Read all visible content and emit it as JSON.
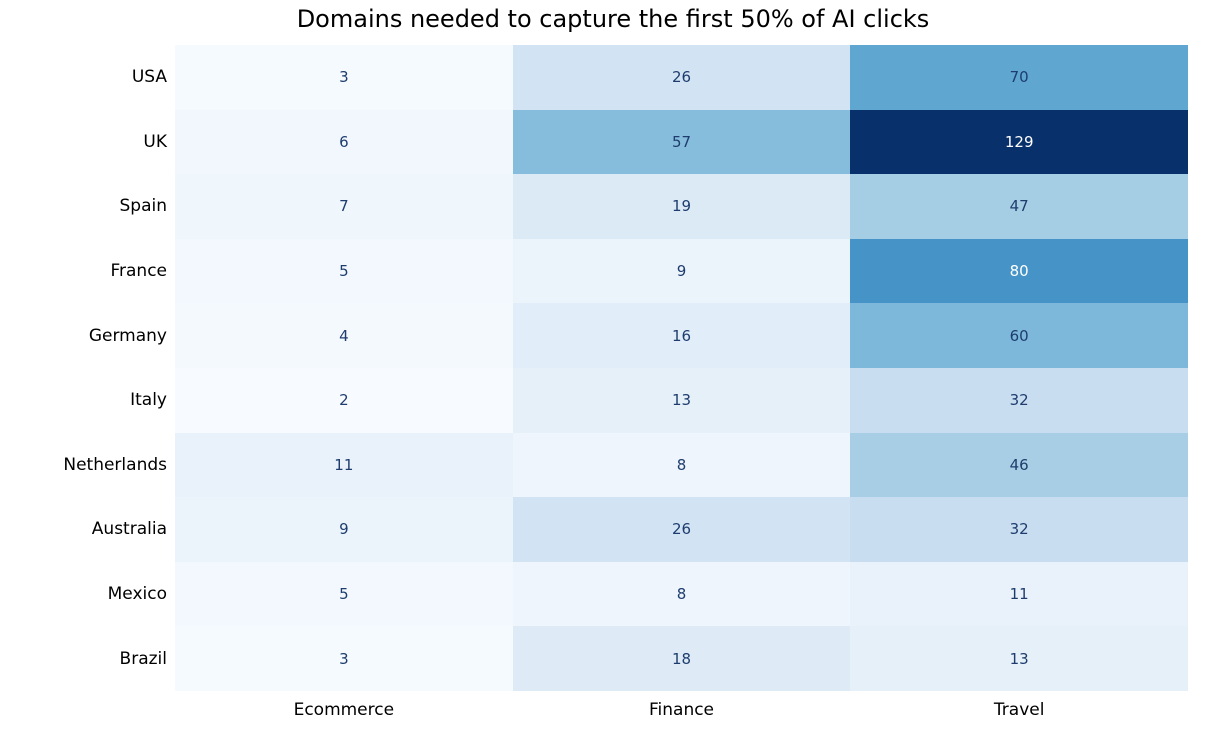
{
  "page": {
    "background_color": "#ffffff"
  },
  "chart_data": {
    "type": "heatmap",
    "title": "Domains needed to capture the first 50% of AI clicks",
    "rows": [
      "USA",
      "UK",
      "Spain",
      "France",
      "Germany",
      "Italy",
      "Netherlands",
      "Australia",
      "Mexico",
      "Brazil"
    ],
    "columns": [
      "Ecommerce",
      "Finance",
      "Travel"
    ],
    "values": [
      [
        3,
        26,
        70
      ],
      [
        6,
        57,
        129
      ],
      [
        7,
        19,
        47
      ],
      [
        5,
        9,
        80
      ],
      [
        4,
        16,
        60
      ],
      [
        2,
        13,
        32
      ],
      [
        11,
        8,
        46
      ],
      [
        9,
        26,
        32
      ],
      [
        5,
        8,
        11
      ],
      [
        3,
        18,
        13
      ]
    ],
    "vmin": 2,
    "vmax": 129,
    "annotations_shown": true,
    "grid": false,
    "legend": "none",
    "colormap": {
      "name": "Blues",
      "stops": [
        {
          "pos": 0.0,
          "color": "#f7fbff"
        },
        {
          "pos": 0.125,
          "color": "#deebf7"
        },
        {
          "pos": 0.25,
          "color": "#c6dbef"
        },
        {
          "pos": 0.375,
          "color": "#9ecae1"
        },
        {
          "pos": 0.5,
          "color": "#6baed6"
        },
        {
          "pos": 0.625,
          "color": "#4292c6"
        },
        {
          "pos": 0.75,
          "color": "#2171b5"
        },
        {
          "pos": 0.875,
          "color": "#08519c"
        },
        {
          "pos": 1.0,
          "color": "#08306b"
        }
      ]
    },
    "annotation_color_dark": "#1e3d6e",
    "annotation_color_light": "#ffffff",
    "axis_label_color": "#000000",
    "title_color": "#000000"
  }
}
